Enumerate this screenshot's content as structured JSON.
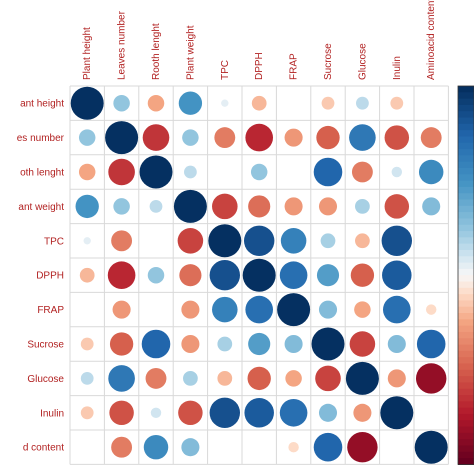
{
  "chart_data": {
    "type": "heatmap",
    "variables": [
      "Plant height",
      "Leaves number",
      "Rooth lenght",
      "Plant weight",
      "TPC",
      "DPPH",
      "FRAP",
      "Sucrose",
      "Glucose",
      "Inulin",
      "Aminoacid content"
    ],
    "row_labels": [
      "ant height",
      "es number",
      "oth lenght",
      "ant weight",
      "TPC",
      "DPPH",
      "FRAP",
      "Sucrose",
      "Glucose",
      "Inulin",
      "d content"
    ],
    "matrix": [
      [
        1.0,
        0.25,
        -0.25,
        0.5,
        0.05,
        -0.2,
        0.0,
        -0.15,
        0.15,
        -0.15,
        0.0
      ],
      [
        0.25,
        1.0,
        -0.65,
        0.25,
        -0.4,
        -0.7,
        -0.3,
        -0.5,
        0.65,
        -0.55,
        -0.4
      ],
      [
        -0.25,
        -0.65,
        1.0,
        0.15,
        0.0,
        0.25,
        0.0,
        0.75,
        -0.4,
        0.1,
        0.55
      ],
      [
        0.5,
        0.25,
        0.15,
        1.0,
        -0.6,
        -0.45,
        -0.3,
        -0.3,
        0.2,
        -0.55,
        0.3
      ],
      [
        0.05,
        -0.4,
        0.0,
        -0.6,
        1.0,
        0.85,
        0.6,
        0.2,
        -0.2,
        0.85,
        0.0
      ],
      [
        -0.2,
        -0.7,
        0.25,
        -0.45,
        0.85,
        1.0,
        0.7,
        0.45,
        -0.5,
        0.8,
        0.0
      ],
      [
        0.0,
        -0.3,
        0.0,
        -0.3,
        0.6,
        0.7,
        1.0,
        0.3,
        -0.25,
        0.7,
        -0.1
      ],
      [
        -0.15,
        -0.5,
        0.75,
        -0.3,
        0.2,
        0.45,
        0.3,
        1.0,
        -0.6,
        0.3,
        0.75
      ],
      [
        0.15,
        0.65,
        -0.4,
        0.2,
        -0.2,
        -0.5,
        -0.25,
        -0.6,
        1.0,
        -0.3,
        -0.85
      ],
      [
        -0.15,
        -0.55,
        0.1,
        -0.55,
        0.85,
        0.8,
        0.7,
        0.3,
        -0.3,
        1.0,
        0.0
      ],
      [
        0.0,
        -0.4,
        0.55,
        0.3,
        0.0,
        0.0,
        -0.1,
        0.75,
        -0.85,
        0.0,
        1.0
      ]
    ],
    "value_range": [
      -1,
      1
    ],
    "colors": {
      "positive": "#053061",
      "neutral": "#f7f7f7",
      "negative": "#67001f",
      "grid": "#d9d9d9",
      "label": "#b22222"
    },
    "legend": "right",
    "grid": true
  }
}
